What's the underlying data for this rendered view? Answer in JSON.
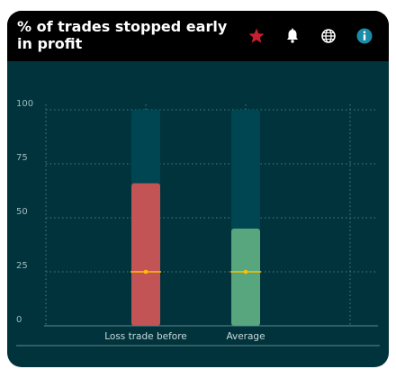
{
  "header": {
    "title": "% of trades stopped early in profit",
    "icons": [
      "star-icon",
      "bell-icon",
      "globe-icon",
      "info-icon"
    ]
  },
  "colors": {
    "header_bg": "#000000",
    "card_bg": "#00333b",
    "track": "#004552",
    "bar_loss": "#c25456",
    "bar_avg": "#57a67e",
    "marker": "#ffc000",
    "star": "#c8202f",
    "info": "#1a8ca8"
  },
  "chart_data": {
    "type": "bar",
    "title": "% of trades stopped early in profit",
    "categories": [
      "Loss trade before",
      "Average"
    ],
    "values": [
      66,
      45
    ],
    "max_track": 100,
    "reference_marker": [
      25,
      25
    ],
    "ylim": [
      0,
      100
    ],
    "yticks": [
      0,
      25,
      50,
      75,
      100
    ],
    "grid": true
  }
}
